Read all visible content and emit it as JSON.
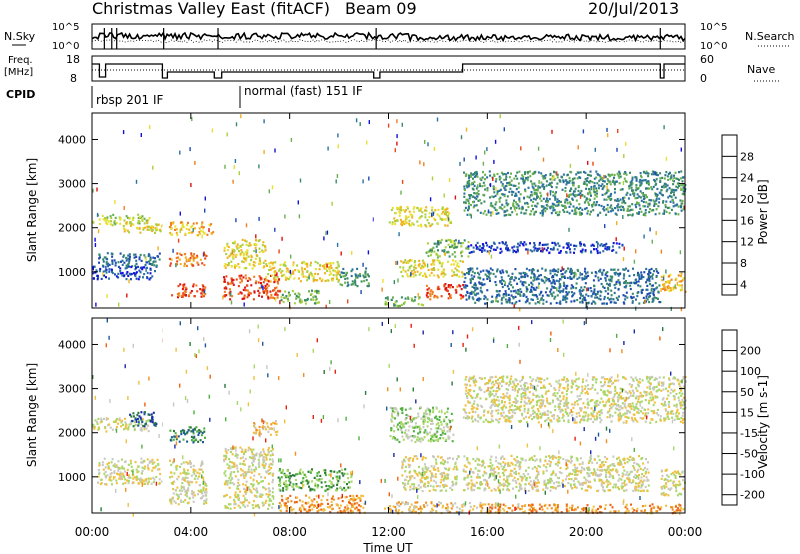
{
  "header": {
    "title": "Christmas Valley East (fitACF)",
    "beam": "Beam 09",
    "date": "20/Jul/2013"
  },
  "top_panels": {
    "nsky_label": "N.Sky",
    "nsearch_label": "N.Search",
    "nsky_ticks": [
      "10^5",
      "10^0"
    ],
    "nsearch_ticks": [
      "10^5",
      "10^0"
    ],
    "freq_label_1": "Freq.",
    "freq_label_2": "[MHz]",
    "freq_ticks": [
      "18",
      "8"
    ],
    "nave_label": "Nave",
    "nave_ticks": [
      "60",
      "0"
    ],
    "cpid_label": "CPID",
    "cpid_modes": [
      {
        "text": "rbsp 201 IF",
        "start_hour": 0.0
      },
      {
        "text": "normal (fast) 151 IF",
        "start_hour": 6.0
      }
    ]
  },
  "colorbars": {
    "power": {
      "label": "Power [dB]",
      "ticks": [
        "28",
        "24",
        "20",
        "16",
        "12",
        "8",
        "4"
      ],
      "colors": [
        "#1010e0",
        "#1c4ab0",
        "#2a70a0",
        "#3a8a6a",
        "#68b050",
        "#a8d040",
        "#e8e030",
        "#f0b020",
        "#f08020",
        "#e84818",
        "#e01010"
      ]
    },
    "velocity": {
      "label": "Velocity [m s-1]",
      "ticks": [
        "200",
        "100",
        "50",
        "15",
        "-15",
        "-50",
        "-100",
        "-200"
      ],
      "colors": [
        "#1a2aa8",
        "#1e5a9a",
        "#2a7a3a",
        "#50b040",
        "#a8d868",
        "#c8c8c0",
        "#f0c040",
        "#f09020",
        "#f06010",
        "#e82010"
      ]
    }
  },
  "chart_data": [
    {
      "type": "heatmap",
      "title": "Power",
      "ylabel": "Slant Range [km]",
      "xlabel": "Time UT",
      "x_ticks": [
        "00:00",
        "04:00",
        "08:00",
        "12:00",
        "16:00",
        "20:00",
        "00:00"
      ],
      "y_ticks": [
        1000,
        2000,
        3000,
        4000
      ],
      "xlim_hours": [
        0,
        24
      ],
      "ylim_km": [
        180,
        4600
      ],
      "colorbar_label": "Power [dB]",
      "colorbar_ticks": [
        28,
        24,
        20,
        16,
        12,
        8,
        4
      ],
      "scatter_bands": [
        {
          "t0": 0.0,
          "t1": 2.3,
          "r0": 2080,
          "r1": 2320,
          "level": 5
        },
        {
          "t0": 1.2,
          "t1": 2.9,
          "r0": 1900,
          "r1": 2150,
          "level": 6
        },
        {
          "t0": 0.2,
          "t1": 2.8,
          "r0": 1150,
          "r1": 1450,
          "level": 2
        },
        {
          "t0": 0.0,
          "t1": 2.6,
          "r0": 850,
          "r1": 1150,
          "level": 1
        },
        {
          "t0": 3.1,
          "t1": 4.6,
          "r0": 1150,
          "r1": 1450,
          "level": 8
        },
        {
          "t0": 3.1,
          "t1": 4.6,
          "r0": 450,
          "r1": 750,
          "level": 9
        },
        {
          "t0": 3.1,
          "t1": 4.9,
          "r0": 1850,
          "r1": 2150,
          "level": 7
        },
        {
          "t0": 5.3,
          "t1": 7.6,
          "r0": 400,
          "r1": 950,
          "level": 9
        },
        {
          "t0": 5.3,
          "t1": 7.0,
          "r0": 1100,
          "r1": 1750,
          "level": 6
        },
        {
          "t0": 7.0,
          "t1": 10.0,
          "r0": 800,
          "r1": 1250,
          "level": 6
        },
        {
          "t0": 7.6,
          "t1": 9.2,
          "r0": 300,
          "r1": 600,
          "level": 4
        },
        {
          "t0": 10.0,
          "t1": 11.2,
          "r0": 700,
          "r1": 1100,
          "level": 3
        },
        {
          "t0": 12.0,
          "t1": 14.5,
          "r0": 2050,
          "r1": 2500,
          "level": 6
        },
        {
          "t0": 13.5,
          "t1": 15.2,
          "r0": 1350,
          "r1": 1750,
          "level": 4
        },
        {
          "t0": 12.4,
          "t1": 15.0,
          "r0": 900,
          "r1": 1300,
          "level": 6
        },
        {
          "t0": 13.5,
          "t1": 15.0,
          "r0": 400,
          "r1": 750,
          "level": 9
        },
        {
          "t0": 11.8,
          "t1": 13.5,
          "r0": 250,
          "r1": 450,
          "level": 4
        },
        {
          "t0": 15.0,
          "t1": 23.0,
          "r0": 300,
          "r1": 1100,
          "level": 2
        },
        {
          "t0": 15.2,
          "t1": 21.5,
          "r0": 1450,
          "r1": 1700,
          "level": 1
        },
        {
          "t0": 23.0,
          "t1": 24.0,
          "r0": 550,
          "r1": 1000,
          "level": 7
        },
        {
          "t0": 15.0,
          "t1": 24.0,
          "r0": 2300,
          "r1": 3300,
          "level": 3
        }
      ]
    },
    {
      "type": "heatmap",
      "title": "Velocity",
      "ylabel": "Slant Range [km]",
      "xlabel": "Time UT",
      "x_ticks": [
        "00:00",
        "04:00",
        "08:00",
        "12:00",
        "16:00",
        "20:00",
        "00:00"
      ],
      "y_ticks": [
        1000,
        2000,
        3000,
        4000
      ],
      "xlim_hours": [
        0,
        24
      ],
      "ylim_km": [
        180,
        4600
      ],
      "colorbar_label": "Velocity [m s-1]",
      "colorbar_ticks": [
        200,
        100,
        50,
        15,
        -15,
        -50,
        -100,
        -200
      ],
      "scatter_bands": [
        {
          "t0": 0.0,
          "t1": 2.3,
          "r0": 2050,
          "r1": 2350,
          "level": 5
        },
        {
          "t0": 1.5,
          "t1": 2.6,
          "r0": 2150,
          "r1": 2500,
          "level": 1
        },
        {
          "t0": 0.2,
          "t1": 2.8,
          "r0": 850,
          "r1": 1450,
          "level": 5
        },
        {
          "t0": 3.1,
          "t1": 4.6,
          "r0": 1800,
          "r1": 2150,
          "level": 2
        },
        {
          "t0": 3.1,
          "t1": 4.6,
          "r0": 400,
          "r1": 1400,
          "level": 5
        },
        {
          "t0": 5.3,
          "t1": 7.3,
          "r0": 300,
          "r1": 1700,
          "level": 5
        },
        {
          "t0": 6.5,
          "t1": 7.5,
          "r0": 1950,
          "r1": 2300,
          "level": 6
        },
        {
          "t0": 7.5,
          "t1": 10.5,
          "r0": 700,
          "r1": 1200,
          "level": 3
        },
        {
          "t0": 7.5,
          "t1": 11.0,
          "r0": 200,
          "r1": 600,
          "level": 7
        },
        {
          "t0": 12.0,
          "t1": 14.6,
          "r0": 1800,
          "r1": 2600,
          "level": 4
        },
        {
          "t0": 12.5,
          "t1": 14.8,
          "r0": 700,
          "r1": 1500,
          "level": 5
        },
        {
          "t0": 11.8,
          "t1": 16.5,
          "r0": 200,
          "r1": 450,
          "level": 6
        },
        {
          "t0": 15.0,
          "t1": 24.0,
          "r0": 2250,
          "r1": 3300,
          "level": 5
        },
        {
          "t0": 15.0,
          "t1": 22.5,
          "r0": 700,
          "r1": 1500,
          "level": 5
        },
        {
          "t0": 16.0,
          "t1": 24.0,
          "r0": 200,
          "r1": 400,
          "level": 7
        },
        {
          "t0": 23.0,
          "t1": 24.0,
          "r0": 600,
          "r1": 1200,
          "level": 5
        }
      ]
    }
  ]
}
